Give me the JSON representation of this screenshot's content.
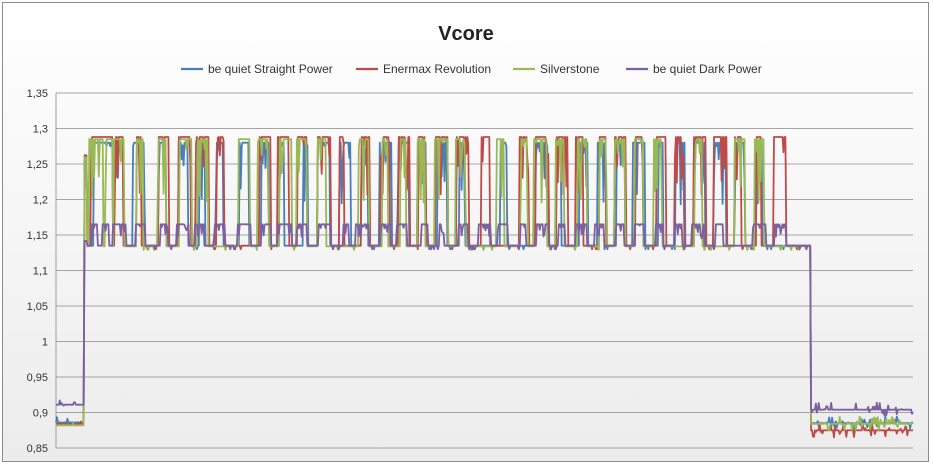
{
  "chart_data": {
    "type": "line",
    "title": "Vcore",
    "xlabel": "",
    "ylabel": "",
    "ylim": [
      0.85,
      1.35
    ],
    "yticks": [
      "1,35",
      "1,3",
      "1,25",
      "1,2",
      "1,15",
      "1,1",
      "1,05",
      "1",
      "0,95",
      "0,9",
      "0,85"
    ],
    "ytick_values": [
      1.35,
      1.3,
      1.25,
      1.2,
      1.15,
      1.1,
      1.05,
      1.0,
      0.95,
      0.9,
      0.85
    ],
    "grid": true,
    "legend_position": "top",
    "x_range": [
      0,
      100
    ],
    "spike_x": [
      4.6,
      6.0,
      7.2,
      9.6,
      12.4,
      14.9,
      16.9,
      19.3,
      21.9,
      24.3,
      26.6,
      28.9,
      31.2,
      33.6,
      35.9,
      38.3,
      40.5,
      42.8,
      45.1,
      47.4,
      49.9,
      52.1,
      54.4,
      56.7,
      58.9,
      61.3,
      63.6,
      65.9,
      68.2,
      70.5,
      72.8,
      75.1,
      77.4,
      79.8,
      82.1,
      84.3
    ],
    "series": [
      {
        "name": "be quiet Straight Power",
        "color": "#4a7ebb",
        "low": 0.886,
        "mid": 1.135,
        "high": 1.28,
        "rise": 3.3,
        "fall": 88.0,
        "end": 0.885,
        "seed": 11
      },
      {
        "name": "Enermax Revolution",
        "color": "#be4b48",
        "low": 0.884,
        "mid": 1.135,
        "high": 1.288,
        "rise": 3.3,
        "fall": 88.0,
        "end": 0.875,
        "seed": 23
      },
      {
        "name": "Silverstone",
        "color": "#98b954",
        "low": 0.882,
        "mid": 1.134,
        "high": 1.285,
        "rise": 3.3,
        "fall": 88.0,
        "end": 0.884,
        "seed": 37
      },
      {
        "name": "be quiet Dark Power",
        "color": "#7d60a0",
        "low": 0.911,
        "mid": 1.135,
        "high": 1.165,
        "rise": 3.3,
        "fall": 88.0,
        "end": 0.904,
        "seed": 51
      }
    ]
  }
}
